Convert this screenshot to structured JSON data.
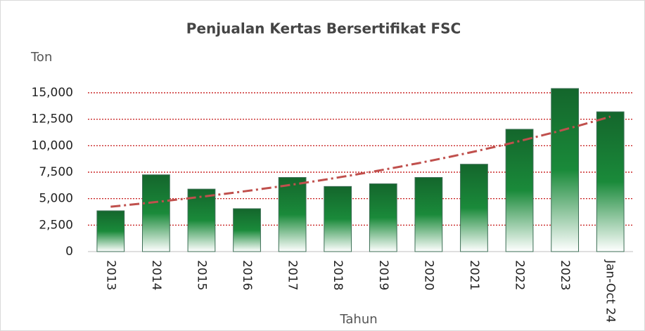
{
  "chart_data": {
    "type": "bar",
    "title": "Penjualan Kertas Bersertifikat FSC",
    "y_label": "Ton",
    "x_label": "Tahun",
    "categories": [
      "2013",
      "2014",
      "2015",
      "2016",
      "2017",
      "2018",
      "2019",
      "2020",
      "2021",
      "2022",
      "2023",
      "Jan-Oct 24"
    ],
    "values": [
      3850,
      7250,
      5900,
      4050,
      7000,
      6150,
      6400,
      7000,
      8250,
      11550,
      15400,
      13200
    ],
    "color": "#1a8a3a",
    "ylim": [
      0,
      15000
    ],
    "yticks": [
      0,
      {
        "value": 2500,
        "label": "2,500"
      },
      {
        "value": 5000,
        "label": "5,000"
      },
      {
        "value": 7500,
        "label": "7,500"
      },
      {
        "value": 10000,
        "label": "10,000"
      },
      {
        "value": 12500,
        "label": "12,500"
      },
      {
        "value": 15000,
        "label": "15,000"
      }
    ],
    "grid": true,
    "grid_color": "#c00000",
    "trendline": "exponential",
    "trendline_color": "#c0504d"
  }
}
